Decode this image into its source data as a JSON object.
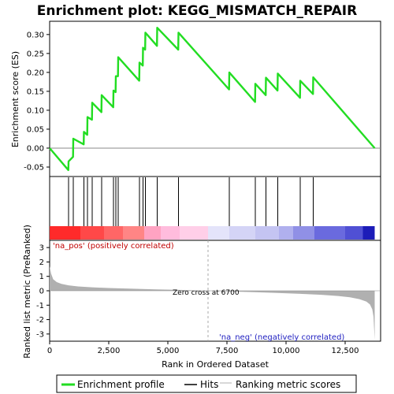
{
  "colors": {
    "es_line": "#22dd22",
    "hit": "#000000",
    "metric_fill": "#b0b0b0",
    "zero_line": "#aaaaaa"
  },
  "legend": {
    "items": [
      {
        "label": "Enrichment profile",
        "color": "#22dd22"
      },
      {
        "label": "Hits",
        "color": "#000000"
      },
      {
        "label": "Ranking metric scores",
        "color": "#b0b0b0"
      }
    ]
  },
  "chart_data": {
    "type": "line",
    "title": "Enrichment plot: KEGG_MISMATCH_REPAIR",
    "es_panel": {
      "ylabel": "Enrichment score (ES)",
      "ylim": [
        -0.075,
        0.335
      ],
      "yticks": [
        -0.05,
        0.0,
        0.05,
        0.1,
        0.15,
        0.2,
        0.25,
        0.3
      ],
      "ytick_labels": [
        "-0.05",
        "0.00",
        "0.05",
        "0.10",
        "0.15",
        "0.20",
        "0.25",
        "0.30"
      ],
      "profile": {
        "x": [
          0,
          790,
          800,
          990,
          1000,
          1440,
          1450,
          1590,
          1600,
          1790,
          1800,
          2190,
          2200,
          2690,
          2700,
          2790,
          2800,
          2890,
          2900,
          3790,
          3800,
          3940,
          3950,
          4040,
          4050,
          4540,
          4550,
          5440,
          5450,
          7590,
          7600,
          8690,
          8700,
          9140,
          9150,
          9640,
          9650,
          10590,
          10600,
          11140,
          11150,
          13750
        ],
        "y": [
          0.0,
          -0.058,
          -0.035,
          -0.023,
          0.025,
          0.01,
          0.043,
          0.035,
          0.082,
          0.075,
          0.12,
          0.095,
          0.14,
          0.108,
          0.152,
          0.148,
          0.19,
          0.19,
          0.24,
          0.178,
          0.226,
          0.218,
          0.265,
          0.26,
          0.305,
          0.27,
          0.318,
          0.26,
          0.305,
          0.155,
          0.2,
          0.122,
          0.17,
          0.14,
          0.186,
          0.152,
          0.197,
          0.133,
          0.178,
          0.143,
          0.187,
          0.0
        ]
      }
    },
    "hits": [
      800,
      1000,
      1450,
      1600,
      1800,
      2200,
      2700,
      2800,
      2900,
      3800,
      3950,
      4050,
      4550,
      5450,
      7600,
      8700,
      9150,
      9650,
      10600,
      11150
    ],
    "metric_panel": {
      "ylabel": "Ranked list metric (PreRanked)",
      "ylim": [
        -3.5,
        3.5
      ],
      "yticks": [
        -3,
        -2,
        -1,
        0,
        1,
        2,
        3
      ],
      "ytick_labels": [
        "-3",
        "-2",
        "-1",
        "0",
        "1",
        "2",
        "3"
      ],
      "x": [
        0,
        60,
        150,
        300,
        500,
        800,
        1200,
        1800,
        2500,
        3500,
        4500,
        5500,
        6700,
        7500,
        8500,
        9500,
        10500,
        11500,
        12200,
        12700,
        13100,
        13400,
        13550,
        13650,
        13700,
        13750
      ],
      "y": [
        1.7,
        1.2,
        0.8,
        0.6,
        0.48,
        0.38,
        0.3,
        0.24,
        0.19,
        0.14,
        0.1,
        0.06,
        0.0,
        -0.04,
        -0.09,
        -0.14,
        -0.2,
        -0.28,
        -0.36,
        -0.45,
        -0.58,
        -0.75,
        -0.95,
        -1.3,
        -1.8,
        -3.4
      ],
      "zero_cross_label": "Zero cross at 6700",
      "zero_cross": 6700,
      "pos_label": "'na_pos' (positively correlated)",
      "neg_label": "'na_neg' (negatively correlated)"
    },
    "xaxis": {
      "xlabel": "Rank in Ordered Dataset",
      "xlim": [
        0,
        14000
      ],
      "xticks": [
        0,
        2500,
        5000,
        7500,
        10000,
        12500
      ],
      "xtick_labels": [
        "0",
        "2,500",
        "5,000",
        "7,500",
        "10,000",
        "12,500"
      ]
    },
    "heatmap": [
      {
        "from": 0,
        "to": 1300,
        "color": "#ff2a2a"
      },
      {
        "from": 1300,
        "to": 2300,
        "color": "#ff4848"
      },
      {
        "from": 2300,
        "to": 3100,
        "color": "#ff6666"
      },
      {
        "from": 3100,
        "to": 4000,
        "color": "#ff8585"
      },
      {
        "from": 4000,
        "to": 4700,
        "color": "#ffa3c2"
      },
      {
        "from": 4700,
        "to": 5500,
        "color": "#ffbcdd"
      },
      {
        "from": 5500,
        "to": 6700,
        "color": "#ffcfe8"
      },
      {
        "from": 6700,
        "to": 7600,
        "color": "#e4e4fa"
      },
      {
        "from": 7600,
        "to": 8700,
        "color": "#d4d4f6"
      },
      {
        "from": 8700,
        "to": 9700,
        "color": "#c4c4f2"
      },
      {
        "from": 9700,
        "to": 10300,
        "color": "#b0b0ee"
      },
      {
        "from": 10300,
        "to": 11200,
        "color": "#9090e6"
      },
      {
        "from": 11200,
        "to": 12500,
        "color": "#6a6ade"
      },
      {
        "from": 12500,
        "to": 13250,
        "color": "#5050d4"
      },
      {
        "from": 13250,
        "to": 13750,
        "color": "#1c1cb8"
      }
    ]
  }
}
